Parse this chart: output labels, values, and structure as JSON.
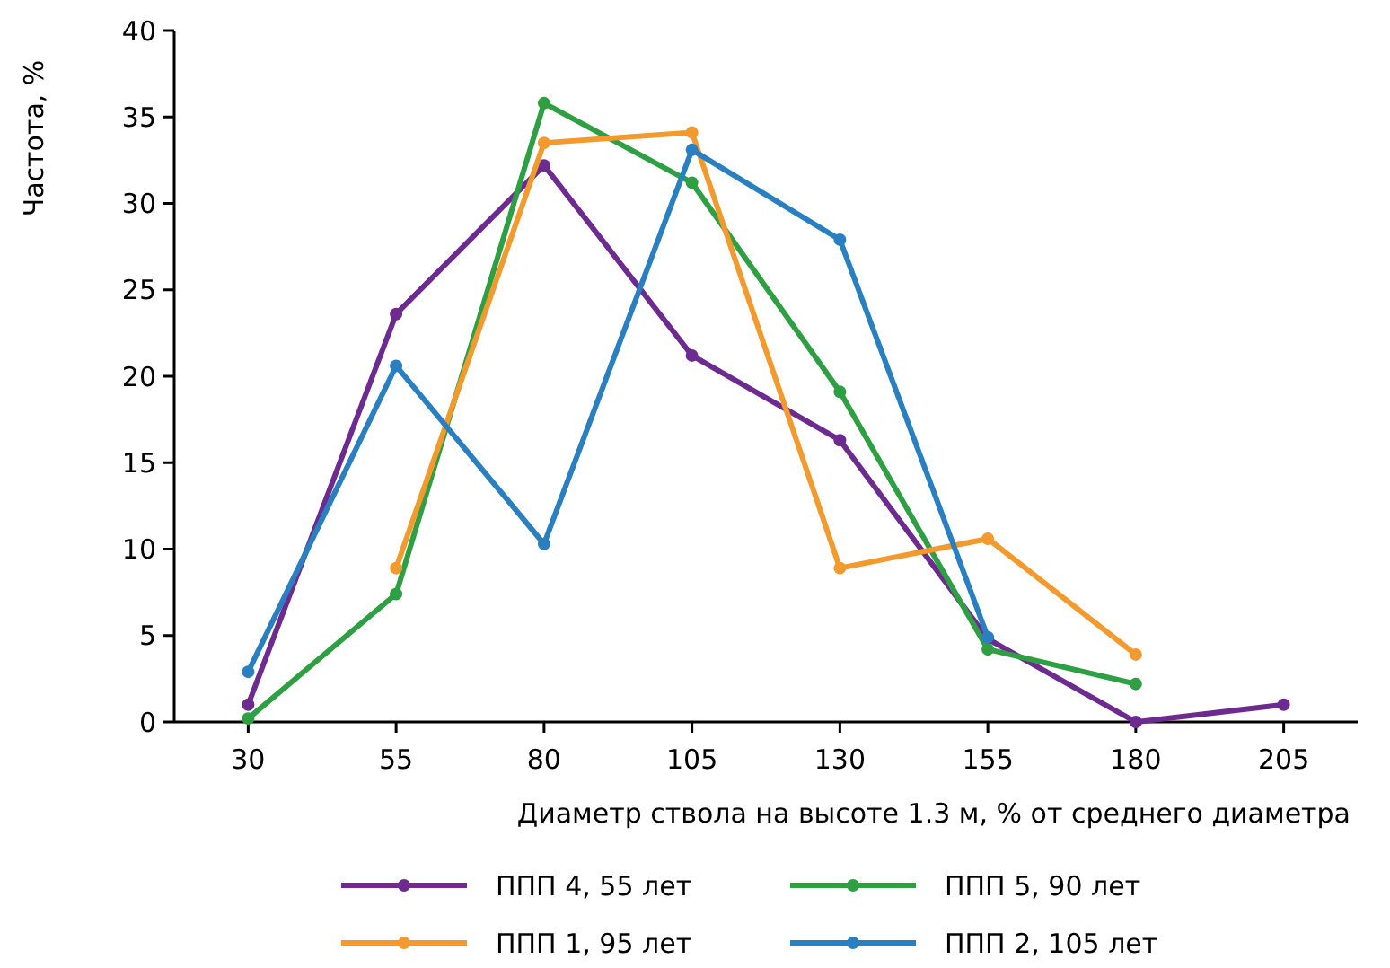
{
  "chart_data": {
    "type": "line",
    "xlabel": "Диаметр ствола на высоте 1.3 м, % от среднего диаметра",
    "ylabel": "Частота, %",
    "categories": [
      "30",
      "55",
      "80",
      "105",
      "130",
      "155",
      "180",
      "205"
    ],
    "series": [
      {
        "name": "ППП 4, 55 лет",
        "color": "#6d2b8f",
        "values": [
          1,
          23.6,
          32.2,
          21.2,
          16.3,
          4.8,
          0,
          1
        ]
      },
      {
        "name": "ППП 5, 90 лет",
        "color": "#2ea043",
        "values": [
          0.2,
          7.4,
          35.8,
          31.2,
          19.1,
          4.2,
          2.2,
          null
        ]
      },
      {
        "name": "ППП 1, 95 лет",
        "color": "#f39a2e",
        "values": [
          null,
          8.9,
          33.5,
          34.1,
          8.9,
          10.6,
          3.9,
          null
        ]
      },
      {
        "name": "ППП 2, 105 лет",
        "color": "#2a7fc1",
        "values": [
          2.9,
          20.6,
          10.3,
          33.1,
          27.9,
          4.9,
          null,
          null
        ]
      }
    ],
    "ylim": [
      0,
      40
    ],
    "yticks": [
      0,
      5,
      10,
      15,
      20,
      25,
      30,
      35,
      40
    ],
    "grid": false,
    "legend": "bottom",
    "marker": "circle",
    "line_style": "solid"
  }
}
